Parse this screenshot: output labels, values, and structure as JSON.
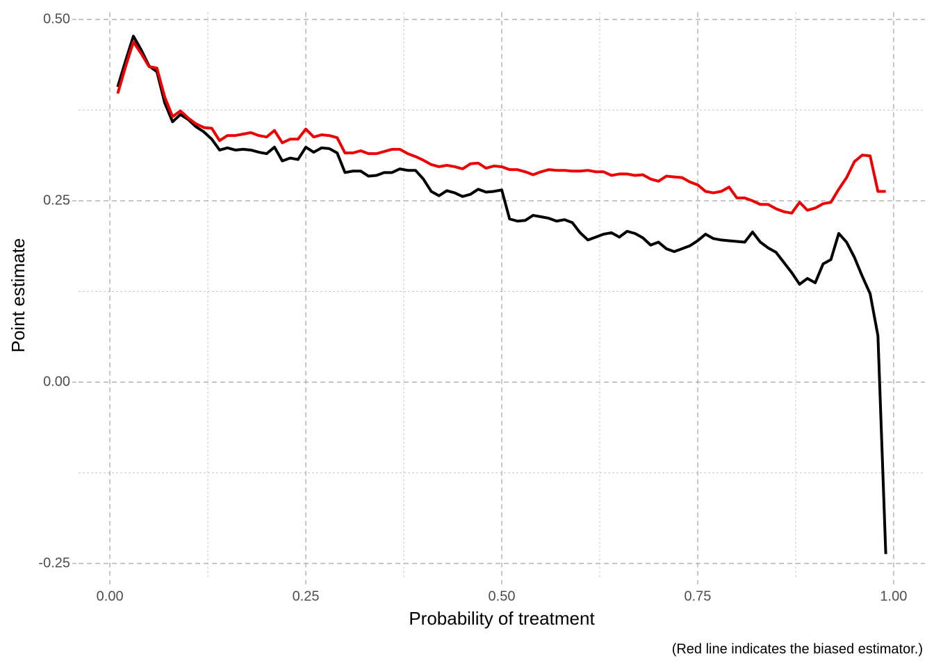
{
  "chart_data": {
    "type": "line",
    "x_label": "Probability of treatment",
    "y_label": "Point estimate",
    "caption": "(Red line indicates the biased estimator.)",
    "x": [
      0.01,
      0.02,
      0.03,
      0.04,
      0.05,
      0.06,
      0.07,
      0.08,
      0.09,
      0.1,
      0.11,
      0.12,
      0.13,
      0.14,
      0.15,
      0.16,
      0.17,
      0.18,
      0.19,
      0.2,
      0.21,
      0.22,
      0.23,
      0.24,
      0.25,
      0.26,
      0.27,
      0.28,
      0.29,
      0.3,
      0.31,
      0.32,
      0.33,
      0.34,
      0.35,
      0.36,
      0.37,
      0.38,
      0.39,
      0.4,
      0.41,
      0.42,
      0.43,
      0.44,
      0.45,
      0.46,
      0.47,
      0.48,
      0.49,
      0.5,
      0.51,
      0.52,
      0.53,
      0.54,
      0.55,
      0.56,
      0.57,
      0.58,
      0.59,
      0.6,
      0.61,
      0.62,
      0.63,
      0.64,
      0.65,
      0.66,
      0.67,
      0.68,
      0.69,
      0.7,
      0.71,
      0.72,
      0.73,
      0.74,
      0.75,
      0.76,
      0.77,
      0.78,
      0.79,
      0.8,
      0.81,
      0.82,
      0.83,
      0.84,
      0.85,
      0.86,
      0.87,
      0.88,
      0.89,
      0.9,
      0.91,
      0.92,
      0.93,
      0.94,
      0.95,
      0.96,
      0.97,
      0.98,
      0.99
    ],
    "series": [
      {
        "color": "#000000",
        "values": [
          0.407,
          0.443,
          0.477,
          0.458,
          0.436,
          0.428,
          0.385,
          0.359,
          0.369,
          0.362,
          0.352,
          0.345,
          0.335,
          0.32,
          0.323,
          0.32,
          0.321,
          0.32,
          0.317,
          0.315,
          0.324,
          0.305,
          0.309,
          0.307,
          0.324,
          0.317,
          0.323,
          0.322,
          0.316,
          0.289,
          0.291,
          0.291,
          0.284,
          0.285,
          0.289,
          0.289,
          0.294,
          0.292,
          0.292,
          0.28,
          0.263,
          0.257,
          0.264,
          0.261,
          0.256,
          0.259,
          0.266,
          0.262,
          0.263,
          0.265,
          0.225,
          0.222,
          0.223,
          0.23,
          0.228,
          0.226,
          0.222,
          0.224,
          0.22,
          0.206,
          0.196,
          0.2,
          0.204,
          0.206,
          0.2,
          0.208,
          0.205,
          0.199,
          0.189,
          0.193,
          0.184,
          0.18,
          0.184,
          0.188,
          0.195,
          0.204,
          0.198,
          0.196,
          0.195,
          0.194,
          0.193,
          0.207,
          0.193,
          0.185,
          0.179,
          0.165,
          0.151,
          0.135,
          0.143,
          0.137,
          0.163,
          0.169,
          0.205,
          0.193,
          0.172,
          0.146,
          0.122,
          0.064,
          -0.237
        ]
      },
      {
        "color": "#ee0000",
        "values": [
          0.398,
          0.435,
          0.469,
          0.453,
          0.435,
          0.433,
          0.393,
          0.366,
          0.374,
          0.364,
          0.356,
          0.351,
          0.35,
          0.333,
          0.34,
          0.34,
          0.342,
          0.344,
          0.34,
          0.338,
          0.347,
          0.33,
          0.335,
          0.335,
          0.349,
          0.338,
          0.341,
          0.34,
          0.337,
          0.316,
          0.316,
          0.319,
          0.315,
          0.315,
          0.318,
          0.321,
          0.321,
          0.315,
          0.311,
          0.306,
          0.3,
          0.297,
          0.299,
          0.297,
          0.294,
          0.301,
          0.302,
          0.295,
          0.298,
          0.297,
          0.293,
          0.293,
          0.29,
          0.286,
          0.29,
          0.293,
          0.292,
          0.292,
          0.291,
          0.291,
          0.292,
          0.29,
          0.29,
          0.285,
          0.287,
          0.287,
          0.285,
          0.286,
          0.28,
          0.277,
          0.284,
          0.283,
          0.282,
          0.276,
          0.272,
          0.263,
          0.261,
          0.263,
          0.269,
          0.254,
          0.254,
          0.25,
          0.245,
          0.245,
          0.239,
          0.235,
          0.233,
          0.248,
          0.237,
          0.24,
          0.246,
          0.248,
          0.266,
          0.282,
          0.304,
          0.313,
          0.312,
          0.263,
          0.263
        ]
      }
    ],
    "xlim": [
      -0.04,
      1.04
    ],
    "ylim": [
      -0.27,
      0.51
    ],
    "xticks": [
      {
        "value": 0,
        "label": "0.00"
      },
      0.25,
      {
        "value": 0.5,
        "label": "0.50"
      },
      0.75,
      {
        "value": 1,
        "label": "1.00"
      }
    ],
    "yticks": [
      -0.25,
      {
        "value": 0,
        "label": "0.00"
      },
      0.25,
      {
        "value": 0.5,
        "label": "0.50"
      }
    ],
    "xminorticks": [
      0.125,
      0.375,
      0.625,
      0.875
    ],
    "yminorticks": [
      -0.125,
      0.125,
      0.375
    ],
    "grid": true
  }
}
